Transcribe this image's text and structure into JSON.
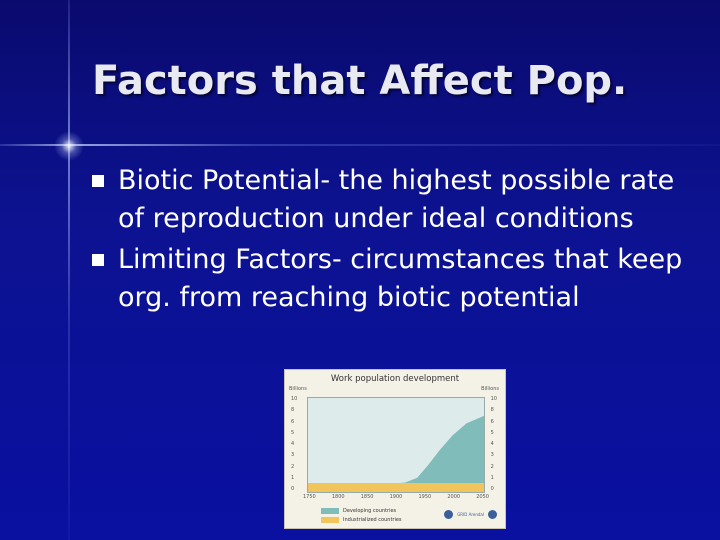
{
  "slide": {
    "title": "Factors that Affect Pop.",
    "bullets": [
      "Biotic Potential- the highest possible rate of reproduction under ideal conditions",
      "Limiting Factors- circumstances that keep org. from reaching biotic potential"
    ]
  },
  "figure": {
    "title": "Work population development",
    "unit_left": "Billions",
    "unit_right": "Billions",
    "y_ticks": [
      "0",
      "1",
      "2",
      "3",
      "4",
      "5",
      "6",
      "8",
      "10"
    ],
    "x_ticks": [
      "1750",
      "1800",
      "1850",
      "1900",
      "1950",
      "2000",
      "2050"
    ],
    "legend": [
      {
        "label": "Developing countries",
        "color": "#7fbcba"
      },
      {
        "label": "Industrialized countries",
        "color": "#f2c45c"
      }
    ],
    "logo_text": "GRID Arendal"
  },
  "colors": {
    "background": "#0c1290",
    "title": "#e9e9f2",
    "text": "#ffffff"
  }
}
